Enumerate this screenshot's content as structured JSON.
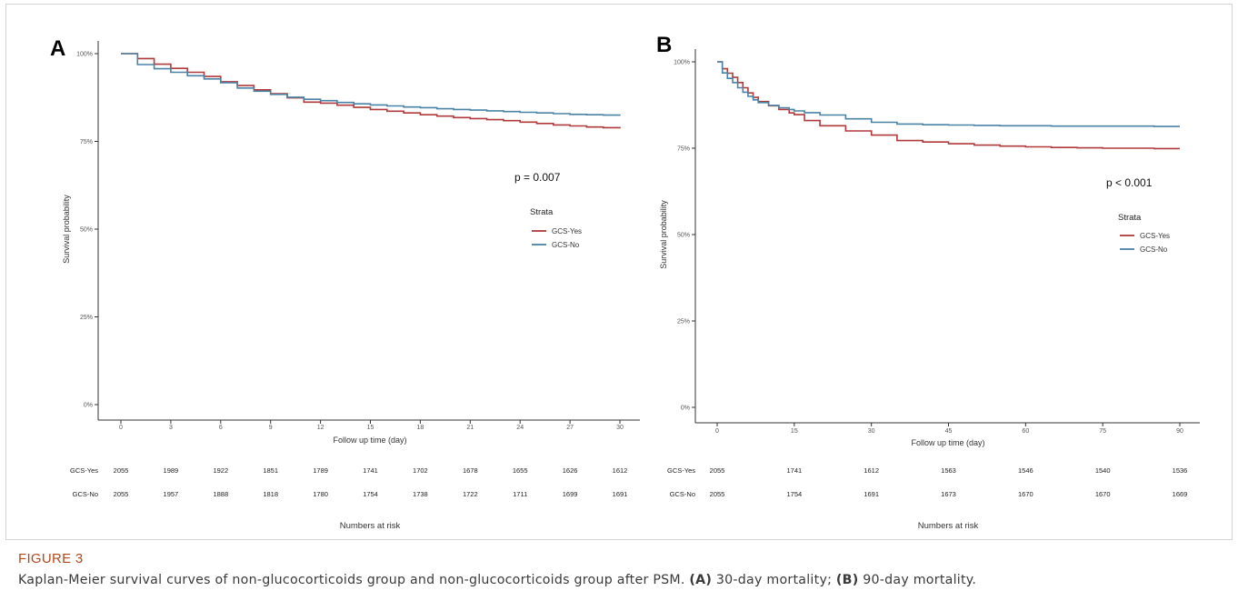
{
  "figure": {
    "label": "FIGURE 3",
    "caption_intro": "Kaplan-Meier survival curves of non-glucocorticoids group and non-glucocorticoids group after PSM.",
    "caption_a_tag": "(A)",
    "caption_a_text": "30-day mortality;",
    "caption_b_tag": "(B)",
    "caption_b_text": "90-day mortality."
  },
  "colors": {
    "gcs_yes": "#b0393b",
    "gcs_no": "#4a82a6",
    "axis": "#333333"
  },
  "chart_data": [
    {
      "type": "line",
      "panel": "A",
      "xlabel": "Follow up time (day)",
      "ylabel": "Survival probability",
      "xlim": [
        0,
        30
      ],
      "ylim": [
        0,
        1
      ],
      "xticks": [
        0,
        3,
        6,
        9,
        12,
        15,
        18,
        21,
        24,
        27,
        30
      ],
      "xtick_labels": [
        "0",
        "3",
        "6",
        "9",
        "12",
        "15",
        "18",
        "21",
        "24",
        "27",
        "30"
      ],
      "yticks": [
        0,
        0.25,
        0.5,
        0.75,
        1
      ],
      "ytick_labels": [
        "0%",
        "25%",
        "50%",
        "75%",
        "100%"
      ],
      "annotation": "p = 0.007",
      "legend_title": "Strata",
      "series": [
        {
          "name": "GCS-Yes",
          "color": "#b0393b",
          "x": [
            0,
            1,
            2,
            3,
            4,
            5,
            6,
            7,
            8,
            9,
            10,
            11,
            12,
            13,
            14,
            15,
            16,
            17,
            18,
            19,
            20,
            21,
            22,
            23,
            24,
            25,
            26,
            27,
            28,
            29,
            30
          ],
          "y": [
            1.0,
            0.986,
            0.97,
            0.958,
            0.947,
            0.935,
            0.92,
            0.909,
            0.897,
            0.886,
            0.874,
            0.862,
            0.859,
            0.853,
            0.847,
            0.841,
            0.836,
            0.831,
            0.826,
            0.822,
            0.818,
            0.815,
            0.812,
            0.809,
            0.805,
            0.801,
            0.797,
            0.794,
            0.791,
            0.789,
            0.787
          ]
        },
        {
          "name": "GCS-No",
          "color": "#4a82a6",
          "x": [
            0,
            1,
            2,
            3,
            4,
            5,
            6,
            7,
            8,
            9,
            10,
            11,
            12,
            13,
            14,
            15,
            16,
            17,
            18,
            19,
            20,
            21,
            22,
            23,
            24,
            25,
            26,
            27,
            28,
            29,
            30
          ],
          "y": [
            1.0,
            0.969,
            0.957,
            0.947,
            0.937,
            0.928,
            0.917,
            0.902,
            0.893,
            0.884,
            0.876,
            0.87,
            0.866,
            0.861,
            0.857,
            0.854,
            0.851,
            0.848,
            0.846,
            0.843,
            0.841,
            0.839,
            0.837,
            0.835,
            0.833,
            0.831,
            0.829,
            0.827,
            0.826,
            0.825,
            0.823
          ]
        }
      ],
      "risk_table": {
        "title": "Numbers at risk",
        "rows": [
          {
            "label": "GCS-Yes",
            "values": [
              "2055",
              "1989",
              "1922",
              "1851",
              "1789",
              "1741",
              "1702",
              "1678",
              "1655",
              "1626",
              "1612"
            ]
          },
          {
            "label": "GCS-No",
            "values": [
              "2055",
              "1957",
              "1888",
              "1818",
              "1780",
              "1754",
              "1738",
              "1722",
              "1711",
              "1699",
              "1691"
            ]
          }
        ]
      }
    },
    {
      "type": "line",
      "panel": "B",
      "xlabel": "Follow up time (day)",
      "ylabel": "Survival probability",
      "xlim": [
        0,
        90
      ],
      "ylim": [
        0,
        1
      ],
      "xticks": [
        0,
        15,
        30,
        45,
        60,
        75,
        90
      ],
      "xtick_labels": [
        "0",
        "15",
        "30",
        "45",
        "60",
        "75",
        "90"
      ],
      "yticks": [
        0,
        0.25,
        0.5,
        0.75,
        1
      ],
      "ytick_labels": [
        "0%",
        "25%",
        "50%",
        "75%",
        "100%"
      ],
      "annotation": "p < 0.001",
      "legend_title": "Strata",
      "series": [
        {
          "name": "GCS-Yes",
          "color": "#b0393b",
          "x": [
            0,
            1,
            2,
            3,
            4,
            5,
            6,
            7,
            8,
            10,
            12,
            14,
            15,
            17,
            20,
            25,
            30,
            35,
            40,
            45,
            50,
            55,
            60,
            65,
            70,
            75,
            80,
            85,
            90
          ],
          "y": [
            1.0,
            0.98,
            0.967,
            0.955,
            0.94,
            0.925,
            0.91,
            0.897,
            0.885,
            0.873,
            0.862,
            0.852,
            0.847,
            0.83,
            0.815,
            0.8,
            0.788,
            0.772,
            0.768,
            0.763,
            0.759,
            0.756,
            0.754,
            0.752,
            0.751,
            0.75,
            0.75,
            0.749,
            0.749
          ]
        },
        {
          "name": "GCS-No",
          "color": "#4a82a6",
          "x": [
            0,
            1,
            2,
            3,
            4,
            5,
            6,
            7,
            8,
            10,
            12,
            14,
            15,
            17,
            20,
            25,
            30,
            35,
            40,
            45,
            50,
            55,
            60,
            65,
            70,
            75,
            80,
            85,
            90
          ],
          "y": [
            1.0,
            0.968,
            0.952,
            0.94,
            0.925,
            0.912,
            0.9,
            0.89,
            0.882,
            0.874,
            0.867,
            0.862,
            0.858,
            0.853,
            0.846,
            0.835,
            0.825,
            0.82,
            0.818,
            0.817,
            0.816,
            0.815,
            0.815,
            0.814,
            0.814,
            0.814,
            0.814,
            0.813,
            0.813
          ]
        }
      ],
      "risk_table": {
        "title": "Numbers at risk",
        "rows": [
          {
            "label": "GCS-Yes",
            "values": [
              "2055",
              "1741",
              "1612",
              "1563",
              "1546",
              "1540",
              "1536"
            ]
          },
          {
            "label": "GCS-No",
            "values": [
              "2055",
              "1754",
              "1691",
              "1673",
              "1670",
              "1670",
              "1669"
            ]
          }
        ]
      }
    }
  ]
}
